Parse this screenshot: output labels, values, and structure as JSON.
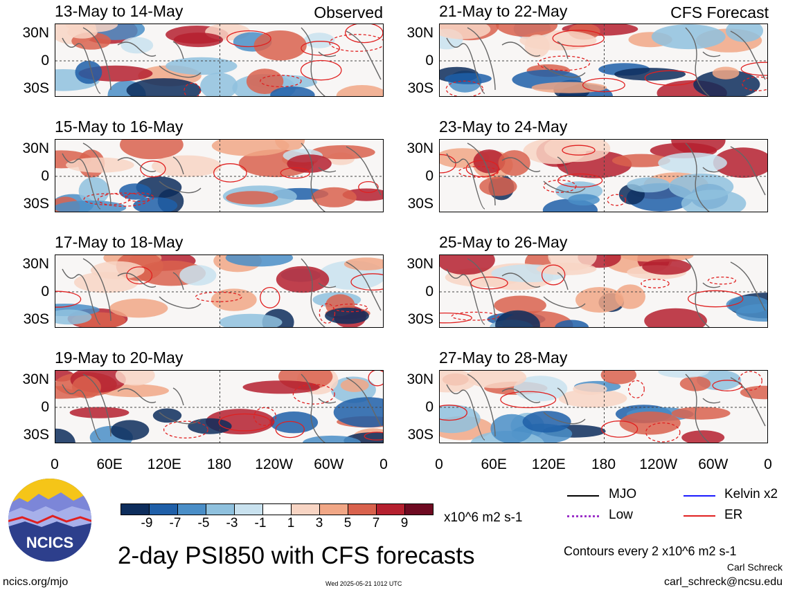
{
  "chart_data": {
    "type": "heatmap",
    "title": "2-day PSI850 with CFS forecasts",
    "column_headers": [
      "Observed",
      "CFS Forecast"
    ],
    "y_ticks": [
      "30N",
      "0",
      "30S"
    ],
    "x_ticks": [
      "0",
      "60E",
      "120E",
      "180",
      "120W",
      "60W",
      "0"
    ],
    "units": "x10^6 m2 s-1",
    "contour_note": "Contours every 2 x10^6 m2 s-1",
    "colorbar": {
      "ticks": [
        "-9",
        "-7",
        "-5",
        "-3",
        "-1",
        "1",
        "3",
        "5",
        "7",
        "9"
      ],
      "colors": [
        "#0d2d5c",
        "#1f5fa8",
        "#4a8ec7",
        "#8fc1de",
        "#c9e2ef",
        "#ffffff",
        "#f8d5c4",
        "#f1a786",
        "#d9624d",
        "#b5202f",
        "#6e0a21"
      ]
    },
    "legend": [
      {
        "label": "MJO",
        "color": "#000000"
      },
      {
        "label": "Kelvin x2",
        "color": "#1a1aff"
      },
      {
        "label": "Low",
        "color": "#9b30c8"
      },
      {
        "label": "ER",
        "color": "#e02020"
      }
    ],
    "panels": [
      {
        "title": "13-May to 14-May",
        "column": "Observed"
      },
      {
        "title": "15-May to 16-May",
        "column": "Observed"
      },
      {
        "title": "17-May to 18-May",
        "column": "Observed"
      },
      {
        "title": "19-May to 20-May",
        "column": "Observed"
      },
      {
        "title": "21-May to 22-May",
        "column": "CFS Forecast"
      },
      {
        "title": "23-May to 24-May",
        "column": "CFS Forecast"
      },
      {
        "title": "25-May to 26-May",
        "column": "CFS Forecast"
      },
      {
        "title": "27-May to 28-May",
        "column": "CFS Forecast"
      }
    ]
  },
  "footer": {
    "logo_text": "NCICS",
    "url": "ncics.org/mjo",
    "timestamp": "Wed 2025-05-21 1012 UTC",
    "author": "Carl Schreck",
    "email": "carl_schreck@ncsu.edu"
  }
}
